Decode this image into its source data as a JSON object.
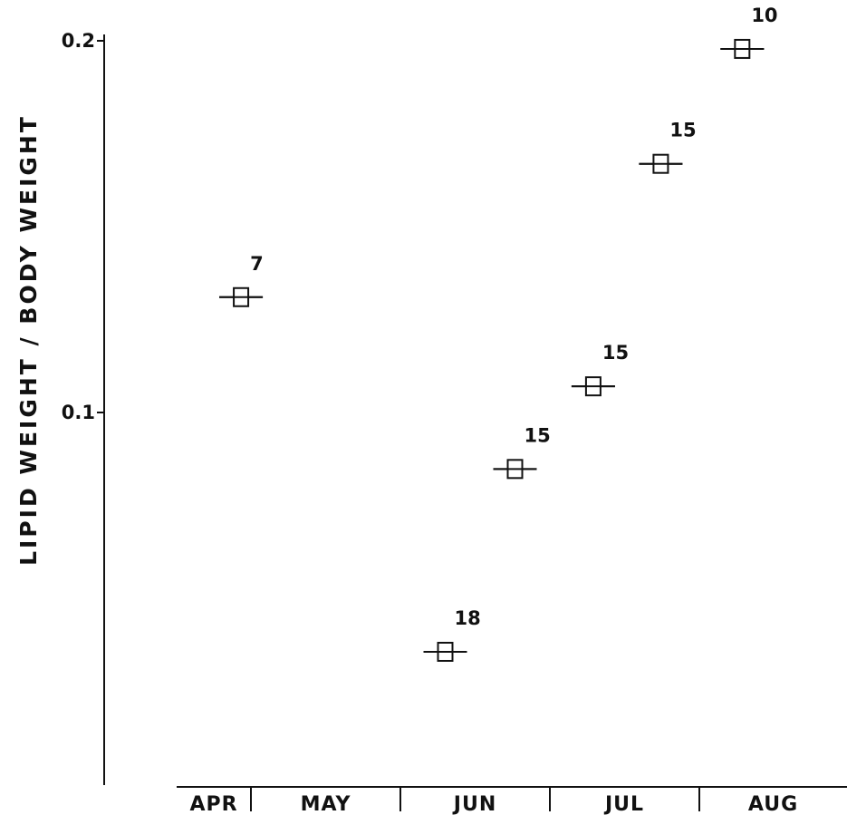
{
  "chart_data": {
    "type": "scatter",
    "title": "",
    "xlabel": "",
    "ylabel": "LIPID WEIGHT / BODY WEIGHT",
    "y_scale": "log",
    "ylim": [
      0.037,
      0.2
    ],
    "y_ticks": [
      {
        "value": 0.2,
        "label": "0.2"
      },
      {
        "value": 0.1,
        "label": "0.1"
      }
    ],
    "months": [
      "APR",
      "MAY",
      "JUN",
      "JUL",
      "AUG"
    ],
    "grid": false,
    "series": [
      {
        "points": [
          {
            "date": "Apr 27",
            "y": 0.124,
            "label": "7"
          },
          {
            "date": "Jun 10",
            "y": 0.064,
            "label": "18"
          },
          {
            "date": "Jun 24",
            "y": 0.09,
            "label": "15"
          },
          {
            "date": "Jul 10",
            "y": 0.105,
            "label": "15"
          },
          {
            "date": "Jul 24",
            "y": 0.159,
            "label": "15"
          },
          {
            "date": "Aug 10",
            "y": 0.197,
            "label": "10"
          }
        ]
      }
    ]
  }
}
